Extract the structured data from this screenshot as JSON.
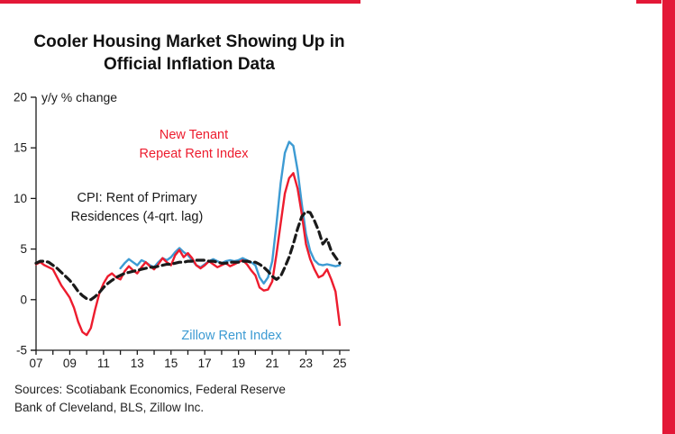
{
  "colors": {
    "accent_red": "#E31837",
    "line_red": "#ED1C2E",
    "line_blue": "#3D9BD3",
    "line_black": "#1A1A1A"
  },
  "header": {
    "title": "Cooler Housing Market Showing Up in\nOfficial Inflation Data"
  },
  "footer": {
    "sources": "Sources: Scotiabank Economics, Federal Reserve\nBank of Cleveland, BLS, Zillow Inc."
  },
  "chart_data": {
    "type": "line",
    "title": "Cooler Housing Market Showing Up in Official Inflation Data",
    "unit_label": "y/y % change",
    "x_year_start": 2007,
    "x_year_end": 2025,
    "x_ticks": [
      "07",
      "09",
      "11",
      "13",
      "15",
      "17",
      "19",
      "21",
      "23",
      "25"
    ],
    "y_ticks": [
      20,
      15,
      10,
      5,
      0,
      -5
    ],
    "y_range": [
      -5,
      20
    ],
    "grid": false,
    "legend_position": "inline-annotations",
    "annotations": {
      "unit": "y/y % change",
      "new_tenant": "New Tenant\nRepeat Rent Index",
      "cpi": "CPI: Rent of Primary\nResidences (4-qrt. lag)",
      "zillow": "Zillow Rent Index"
    },
    "series": [
      {
        "id": "zillow-rent-index",
        "name": "Zillow Rent Index",
        "color": "#3D9BD3",
        "dash": false,
        "x_start": 2012.0,
        "step": 0.25,
        "values": [
          3.1,
          3.6,
          4.0,
          3.7,
          3.4,
          3.9,
          3.7,
          3.4,
          3.2,
          3.7,
          4.1,
          3.9,
          4.2,
          4.7,
          5.1,
          4.7,
          4.4,
          3.9,
          3.4,
          3.2,
          3.5,
          3.8,
          4.0,
          3.8,
          3.6,
          3.8,
          3.9,
          3.8,
          3.9,
          4.1,
          3.9,
          3.7,
          3.4,
          2.2,
          1.6,
          2.2,
          3.8,
          7.5,
          11.5,
          14.5,
          15.6,
          15.2,
          12.8,
          9.5,
          6.5,
          4.8,
          3.9,
          3.5,
          3.4,
          3.5,
          3.4,
          3.3,
          3.4
        ]
      },
      {
        "id": "new-tenant-repeat-rent-index",
        "name": "New Tenant Repeat Rent Index",
        "color": "#ED1C2E",
        "dash": false,
        "x_start": 2007.0,
        "step": 0.25,
        "values": [
          3.5,
          3.7,
          3.4,
          3.2,
          3.0,
          2.2,
          1.4,
          0.8,
          0.2,
          -0.8,
          -2.2,
          -3.2,
          -3.5,
          -2.8,
          -1.0,
          0.6,
          1.6,
          2.3,
          2.6,
          2.2,
          2.0,
          2.8,
          3.3,
          2.9,
          2.6,
          3.2,
          3.7,
          3.3,
          3.0,
          3.5,
          4.1,
          3.7,
          3.4,
          4.4,
          4.9,
          4.2,
          4.6,
          4.1,
          3.4,
          3.1,
          3.4,
          3.8,
          3.5,
          3.2,
          3.4,
          3.6,
          3.3,
          3.5,
          3.7,
          3.9,
          3.5,
          2.9,
          2.4,
          1.2,
          0.9,
          1.0,
          1.8,
          4.5,
          7.5,
          10.5,
          12.0,
          12.5,
          11.0,
          8.5,
          5.5,
          4.0,
          3.0,
          2.2,
          2.4,
          3.0,
          2.0,
          0.8,
          -2.5
        ]
      },
      {
        "id": "cpi-rent-primary-residences-4qrt-lag",
        "name": "CPI: Rent of Primary Residences (4-qrt. lag)",
        "color": "#1A1A1A",
        "dash": true,
        "x_start": 2007.0,
        "step": 0.25,
        "values": [
          3.6,
          3.8,
          3.8,
          3.7,
          3.4,
          3.1,
          2.7,
          2.3,
          1.9,
          1.4,
          0.8,
          0.4,
          0.1,
          0.0,
          0.3,
          0.7,
          1.2,
          1.6,
          1.9,
          2.2,
          2.4,
          2.6,
          2.7,
          2.8,
          2.9,
          3.0,
          3.1,
          3.2,
          3.2,
          3.3,
          3.4,
          3.5,
          3.5,
          3.6,
          3.7,
          3.7,
          3.8,
          3.8,
          3.9,
          3.9,
          3.9,
          3.8,
          3.8,
          3.7,
          3.6,
          3.6,
          3.7,
          3.7,
          3.7,
          3.8,
          3.8,
          3.7,
          3.7,
          3.5,
          3.2,
          2.8,
          2.3,
          2.0,
          2.3,
          3.2,
          4.2,
          5.5,
          7.0,
          8.2,
          8.7,
          8.6,
          7.8,
          6.8,
          5.5,
          6.0,
          4.8,
          4.2,
          3.6
        ]
      }
    ]
  }
}
